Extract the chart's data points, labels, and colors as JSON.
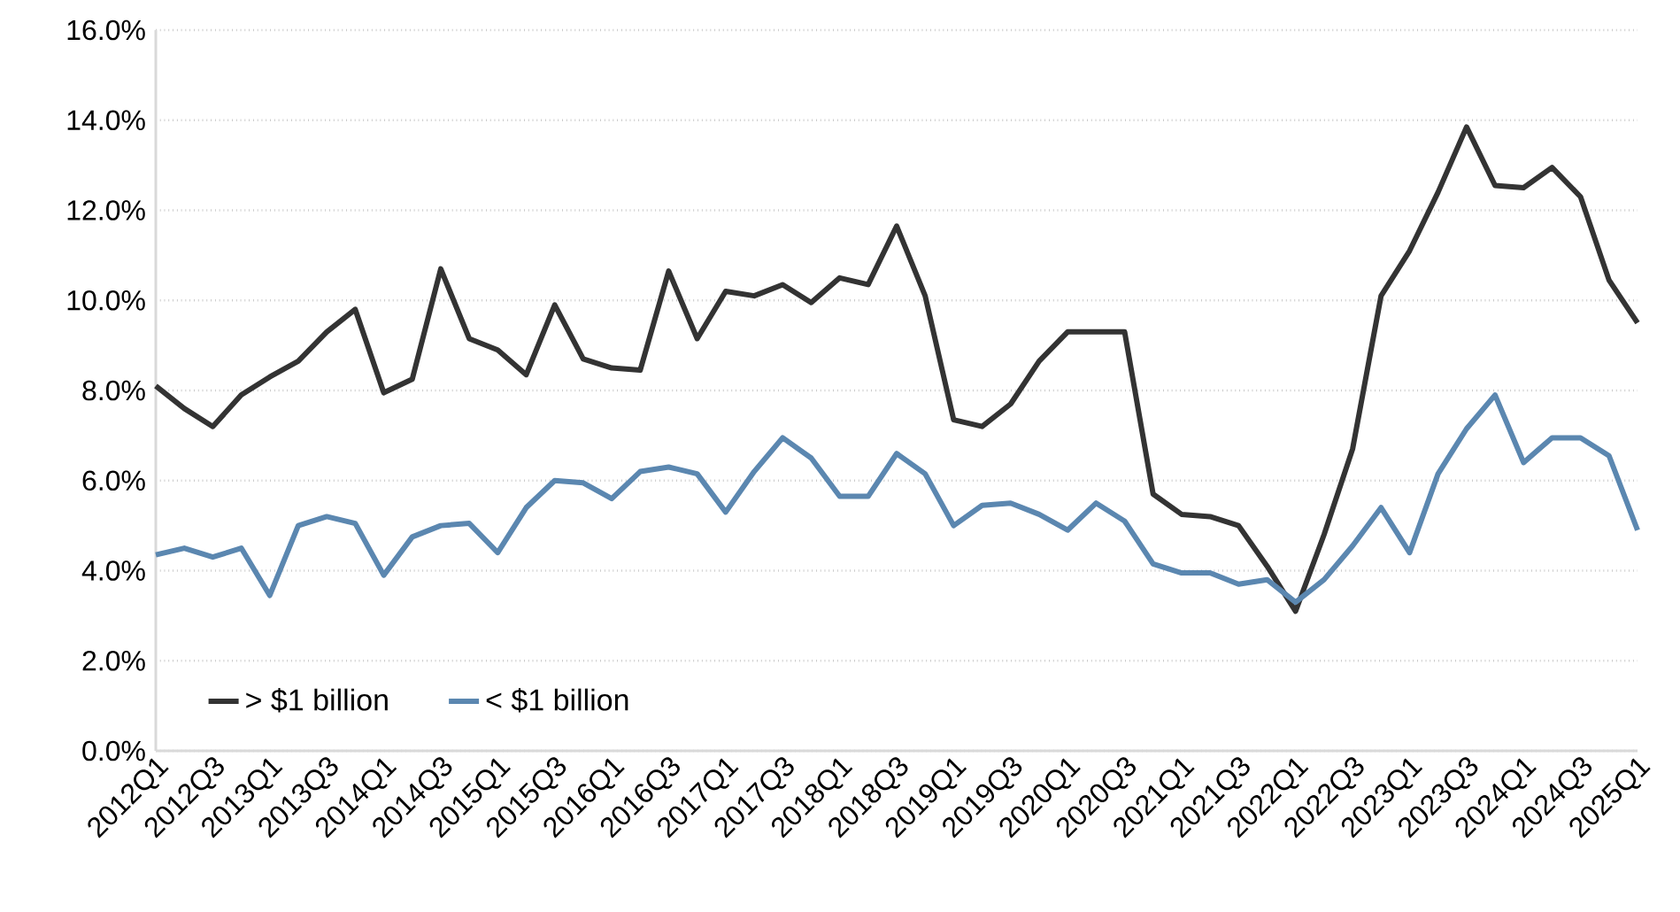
{
  "chart_data": {
    "type": "line",
    "categories": [
      "2012Q1",
      null,
      "2012Q3",
      null,
      "2013Q1",
      null,
      "2013Q3",
      null,
      "2014Q1",
      null,
      "2014Q3",
      null,
      "2015Q1",
      null,
      "2015Q3",
      null,
      "2016Q1",
      null,
      "2016Q3",
      null,
      "2017Q1",
      null,
      "2017Q3",
      null,
      "2018Q1",
      null,
      "2018Q3",
      null,
      "2019Q1",
      null,
      "2019Q3",
      null,
      "2020Q1",
      null,
      "2020Q3",
      null,
      "2021Q1",
      null,
      "2021Q3",
      null,
      "2022Q1",
      null,
      "2022Q3",
      null,
      "2023Q1",
      null,
      "2023Q3",
      null,
      "2024Q1",
      null,
      "2024Q3",
      null,
      "2025Q1"
    ],
    "series": [
      {
        "name": "> $1 billion",
        "color": "#333333",
        "values": [
          8.1,
          7.6,
          7.2,
          7.9,
          8.3,
          8.65,
          9.3,
          9.8,
          7.95,
          8.25,
          10.7,
          9.15,
          8.9,
          8.35,
          9.9,
          8.7,
          8.5,
          8.45,
          10.65,
          9.15,
          10.2,
          10.1,
          10.35,
          9.95,
          10.5,
          10.35,
          11.65,
          10.1,
          7.35,
          7.2,
          7.7,
          8.65,
          9.3,
          9.3,
          9.3,
          5.7,
          5.25,
          5.2,
          5.0,
          4.1,
          3.1,
          4.8,
          6.7,
          10.1,
          11.1,
          12.4,
          13.85,
          12.55,
          12.5,
          12.95,
          12.3,
          10.45,
          9.5
        ]
      },
      {
        "name": "< $1 billion",
        "color": "#5b87b0",
        "values": [
          4.35,
          4.5,
          4.3,
          4.5,
          3.45,
          5.0,
          5.2,
          5.05,
          3.9,
          4.75,
          5.0,
          5.05,
          4.4,
          5.4,
          6.0,
          5.95,
          5.6,
          6.2,
          6.3,
          6.15,
          5.3,
          6.2,
          6.95,
          6.5,
          5.65,
          5.65,
          6.6,
          6.15,
          5.0,
          5.45,
          5.5,
          5.25,
          4.9,
          5.5,
          5.1,
          4.15,
          3.95,
          3.95,
          3.7,
          3.8,
          3.3,
          3.8,
          4.55,
          5.4,
          4.4,
          6.15,
          7.15,
          7.9,
          6.4,
          6.95,
          6.95,
          6.55,
          4.9
        ]
      }
    ],
    "ylim": [
      0,
      16
    ],
    "yticks": [
      {
        "value": 0,
        "label": "0.0%"
      },
      {
        "value": 2,
        "label": "2.0%"
      },
      {
        "value": 4,
        "label": "4.0%"
      },
      {
        "value": 6,
        "label": "6.0%"
      },
      {
        "value": 8,
        "label": "8.0%"
      },
      {
        "value": 10,
        "label": "10.0%"
      },
      {
        "value": 12,
        "label": "12.0%"
      },
      {
        "value": 14,
        "label": "14.0%"
      },
      {
        "value": 16,
        "label": "16.0%"
      }
    ],
    "grid": "y",
    "legend": "bottom left",
    "marker": "none",
    "line_style": "solid"
  }
}
